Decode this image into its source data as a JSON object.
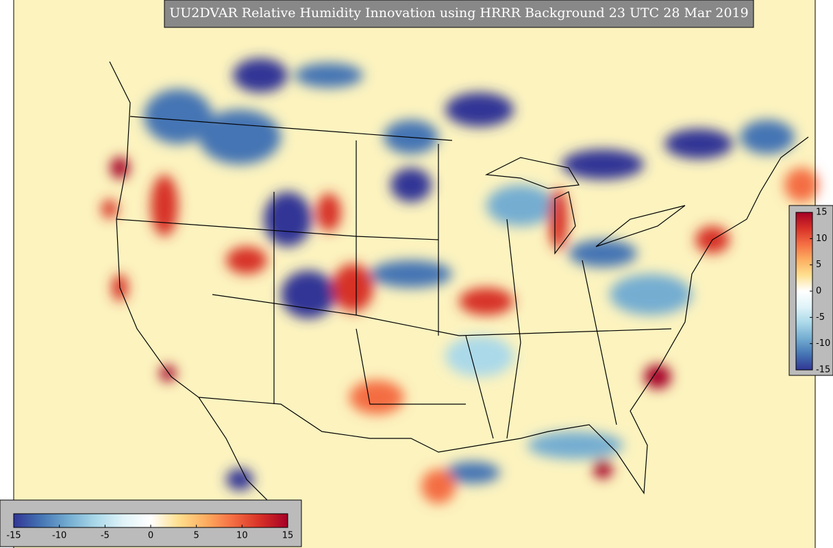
{
  "title": "UU2DVAR Relative Humidity Innovation using HRRR Background 23 UTC 28 Mar 2019",
  "colormap": [
    "#313695",
    "#4575b4",
    "#74add1",
    "#abd9e9",
    "#e0f3f8",
    "#ffffff",
    "#fee090",
    "#fdae61",
    "#f46d43",
    "#d73027",
    "#a50026"
  ],
  "colorbars": [
    {
      "orientation": "horizontal",
      "range": [
        -15,
        15
      ],
      "ticks": [
        -15,
        -10,
        -5,
        0,
        5,
        10,
        15
      ]
    },
    {
      "orientation": "vertical",
      "range": [
        -15,
        15
      ],
      "ticks": [
        -15,
        -10,
        -5,
        0,
        5,
        10,
        15
      ]
    }
  ]
}
